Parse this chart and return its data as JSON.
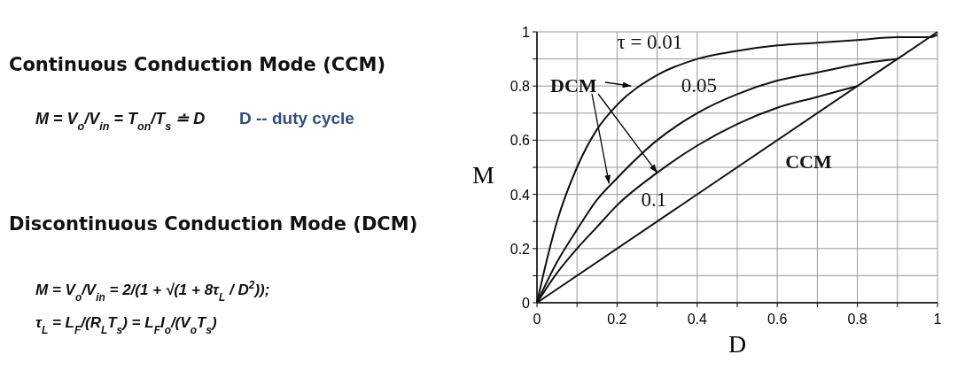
{
  "chart_data": {
    "type": "line",
    "xlabel": "D",
    "ylabel": "M",
    "xlim": [
      0,
      1
    ],
    "ylim": [
      0,
      1
    ],
    "xticks": [
      0,
      {
        "value": 0.1,
        "label": null
      },
      0.2,
      {
        "value": 0.3,
        "label": null
      },
      0.4,
      {
        "value": 0.5,
        "label": null
      },
      0.6,
      {
        "value": 0.7,
        "label": null
      },
      0.8,
      {
        "value": 0.9,
        "label": null
      },
      1
    ],
    "yticks": [
      0,
      {
        "value": 0.1,
        "label": null
      },
      0.2,
      {
        "value": 0.3,
        "label": null
      },
      0.4,
      {
        "value": 0.5,
        "label": null
      },
      0.6,
      {
        "value": 0.7,
        "label": null
      },
      0.8,
      {
        "value": 0.9,
        "label": null
      },
      1
    ],
    "grid": true,
    "marker": "none",
    "line_style": "solid",
    "series": [
      {
        "name": "τ = 0.01",
        "color": "#111111",
        "x": [
          0,
          0.02,
          0.05,
          0.1,
          0.15,
          0.2,
          0.3,
          0.4,
          0.5,
          0.6,
          0.7,
          0.8,
          0.9,
          0.98,
          1
        ],
        "values": [
          0,
          0.13,
          0.3,
          0.5,
          0.64,
          0.73,
          0.84,
          0.9,
          0.93,
          0.95,
          0.96,
          0.97,
          0.98,
          0.98,
          0.99
        ]
      },
      {
        "name": "0.05",
        "color": "#111111",
        "x": [
          0,
          0.05,
          0.1,
          0.15,
          0.2,
          0.3,
          0.4,
          0.5,
          0.6,
          0.7,
          0.8,
          0.9
        ],
        "values": [
          0,
          0.15,
          0.27,
          0.38,
          0.46,
          0.6,
          0.7,
          0.77,
          0.82,
          0.85,
          0.88,
          0.9
        ]
      },
      {
        "name": "0.1",
        "color": "#111111",
        "x": [
          0,
          0.05,
          0.1,
          0.15,
          0.2,
          0.3,
          0.4,
          0.5,
          0.6,
          0.7,
          0.8
        ],
        "values": [
          0,
          0.11,
          0.2,
          0.28,
          0.36,
          0.48,
          0.58,
          0.66,
          0.72,
          0.76,
          0.8
        ]
      },
      {
        "name": "CCM",
        "color": "#111111",
        "x": [
          0,
          1
        ],
        "values": [
          0,
          1
        ]
      }
    ],
    "annotations": [
      "Continuous Conduction Mode (CCM)",
      "M = V$_{o}$/V$_{in}$ = T$_{on}$/T$_{s}$ ≐ D",
      "D -- duty cycle",
      "Discontinuous Conduction Mode (DCM)",
      "M = V$_{o}$/V$_{in}$ = 2/(1 + √(1 + 8τ$_{L}$ / D$^{2}$));",
      "τ$_{L}$ = L$_{F}$/(R$_{L}$T$_{s}$) = L$_{F}$I$_{o}$/(V$_{o}$T$_{s}$)",
      {
        "text": "DCM",
        "x": 0.3,
        "y": 0.48
      }
    ]
  }
}
